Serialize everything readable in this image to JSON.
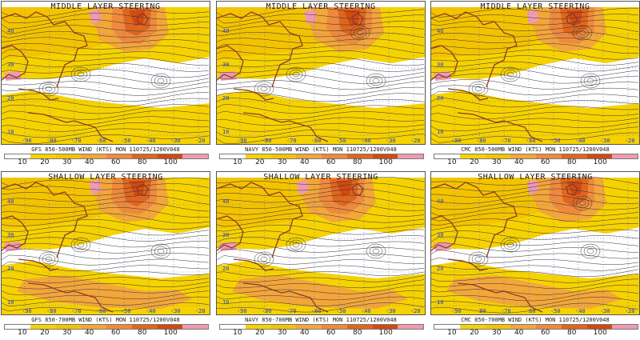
{
  "colors": {
    "ocean": "#ffffff",
    "c10": "#f6d200",
    "c20": "#f4c300",
    "c30": "#f3a63a",
    "c40": "#ef8a3c",
    "c60": "#e0661e",
    "c80": "#d04a12",
    "c100": "#ef9ab0",
    "coast": "#8b3a2a",
    "grid": "#4455dd",
    "stream": "#333333"
  },
  "colorbar": {
    "ticks": [
      "10",
      "20",
      "30",
      "40",
      "60",
      "80",
      "100"
    ],
    "swatches": [
      "#ffffff",
      "#f6d200",
      "#f4c300",
      "#f3a63a",
      "#ef8a3c",
      "#e0661e",
      "#d04a12",
      "#ef9ab0"
    ]
  },
  "lat_labels": [
    "40",
    "30",
    "20",
    "10"
  ],
  "lon_labels": [
    "-90",
    "-80",
    "-70",
    "-60",
    "-50",
    "-40",
    "-30",
    "-20"
  ],
  "panels": [
    {
      "id": "gfs-middle",
      "title": "MIDDLE LAYER STEERING",
      "caption": "GFS 850-500MB WIND (KTS) MON 110725/1200V048"
    },
    {
      "id": "navy-middle",
      "title": "MIDDLE LAYER STEERING",
      "caption": "NAVY 850-500MB WIND (KTS) MON 110725/1200V048"
    },
    {
      "id": "cmc-middle",
      "title": "MIDDLE LAYER STEERING",
      "caption": "CMC 850-500MB WIND (KTS) MON 110725/1200V048"
    },
    {
      "id": "gfs-shallow",
      "title": "SHALLOW LAYER STEERING",
      "caption": "GFS 850-700MB WIND (KTS) MON 110725/1200V048"
    },
    {
      "id": "navy-shallow",
      "title": "SHALLOW LAYER STEERING",
      "caption": "NAVY 850-700MB WIND (KTS) MON 110725/1200V048"
    },
    {
      "id": "cmc-shallow",
      "title": "SHALLOW LAYER STEERING",
      "caption": "CMC 850-700MB WIND (KTS) MON 110725/1200V048"
    }
  ]
}
